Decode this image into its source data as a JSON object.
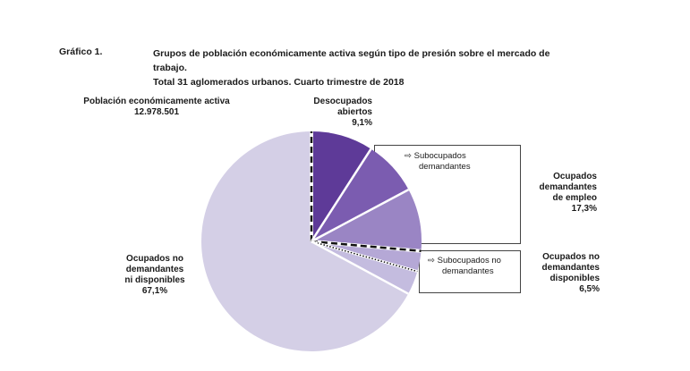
{
  "figure": {
    "label": "Gráfico 1.",
    "title_line1": "Grupos de población económicamente activa según tipo de presión sobre el mercado de trabajo.",
    "title_line2": "Total 31 aglomerados urbanos. Cuarto trimestre de 2018"
  },
  "total": {
    "label": "Población económicamente activa",
    "value": "12.978.501"
  },
  "labels": {
    "desocupados_line1": "Desocupados",
    "desocupados_line2": "abiertos",
    "desocupados_pct": "9,1%",
    "odemp_line1": "Ocupados",
    "odemp_line2": "demandantes",
    "odemp_line3": "de empleo",
    "odemp_pct": "17,3%",
    "ondisp_line1": "Ocupados no",
    "ondisp_line2": "demandantes",
    "ondisp_line3": "disponibles",
    "ondisp_pct": "6,5%",
    "ondnd_line1": "Ocupados no",
    "ondnd_line2": "demandantes",
    "ondnd_line3": "ni disponibles",
    "ondnd_pct": "67,1%",
    "subdem_line1": "Subocupados",
    "subdem_line2": "demandantes",
    "subnodem_line1": "Subocupados no",
    "subnodem_line2": "demandantes",
    "arrow": "⇨"
  },
  "chart_data": {
    "type": "pie",
    "title": "Grupos de población económicamente activa según tipo de presión sobre el mercado de trabajo. Total 31 aglomerados urbanos. Cuarto trimestre de 2018",
    "unit": "%",
    "slices": [
      {
        "label": "Desocupados abiertos",
        "value": 9.1,
        "color": "#5e3a98"
      },
      {
        "label": "Subocupados demandantes",
        "value": 8.1,
        "color": "#7b5cb0"
      },
      {
        "label": "Ocupados demandantes de empleo",
        "value": 9.2,
        "color": "#9a85c4"
      },
      {
        "label": "Subocupados no demandantes",
        "value": 3.0,
        "color": "#b5a8d6"
      },
      {
        "label": "Ocupados no demandantes disponibles",
        "value": 3.5,
        "color": "#c4bcdf"
      },
      {
        "label": "Ocupados no demandantes ni disponibles",
        "value": 67.1,
        "color": "#d4cfe6"
      }
    ],
    "groups": [
      {
        "label": "Ocupados demandantes de empleo",
        "value": 17.3,
        "slices": [
          "Subocupados demandantes",
          "Ocupados demandantes de empleo"
        ]
      },
      {
        "label": "Ocupados no demandantes disponibles",
        "value": 6.5,
        "slices": [
          "Subocupados no demandantes",
          "Ocupados no demandantes disponibles"
        ]
      }
    ],
    "legend": "none"
  }
}
